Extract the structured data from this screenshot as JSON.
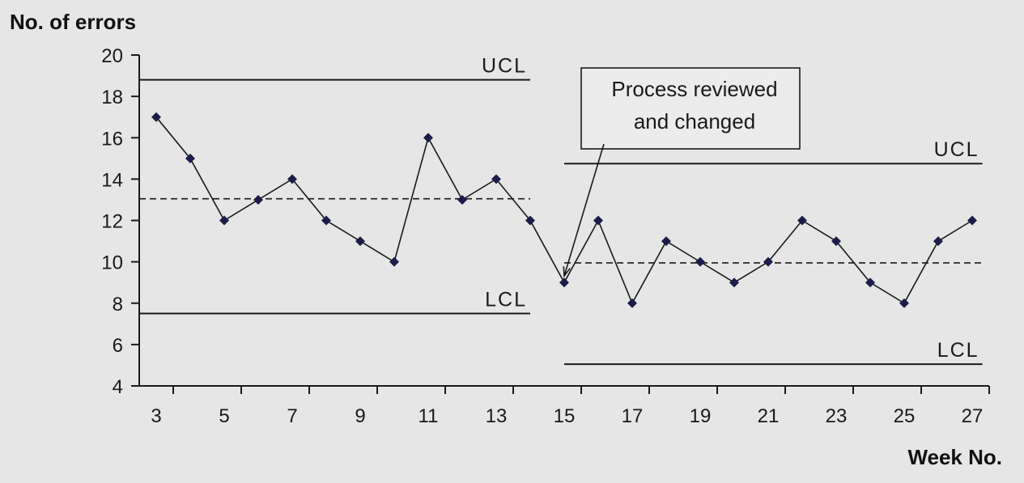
{
  "chart_data": {
    "type": "line",
    "ylabel": "No. of errors",
    "xlabel": "Week No.",
    "ylim": [
      4,
      20
    ],
    "yticks": [
      4,
      6,
      8,
      10,
      12,
      14,
      16,
      18,
      20
    ],
    "xlim": [
      2.5,
      27.5
    ],
    "xticks": [
      3,
      5,
      7,
      9,
      11,
      13,
      15,
      17,
      19,
      21,
      23,
      25,
      27
    ],
    "series": [
      {
        "name": "No. of errors",
        "x": [
          3,
          4,
          5,
          6,
          7,
          8,
          9,
          10,
          11,
          12,
          13,
          14,
          15,
          16,
          17,
          18,
          19,
          20,
          21,
          22,
          23,
          24,
          25,
          26,
          27
        ],
        "values": [
          17,
          15,
          12,
          13,
          14,
          12,
          11,
          10,
          16,
          13,
          14,
          12,
          9,
          12,
          8,
          11,
          10,
          9,
          10,
          12,
          11,
          9,
          8,
          11,
          12
        ]
      }
    ],
    "control_lines": [
      {
        "label": "UCL",
        "style": "solid",
        "value": 18.8,
        "x_range": [
          2.5,
          14
        ]
      },
      {
        "label": "",
        "style": "dashed",
        "value": 13.05,
        "x_range": [
          2.5,
          14
        ]
      },
      {
        "label": "LCL",
        "style": "solid",
        "value": 7.5,
        "x_range": [
          2.5,
          14
        ]
      },
      {
        "label": "UCL",
        "style": "solid",
        "value": 14.75,
        "x_range": [
          15,
          27.3
        ]
      },
      {
        "label": "",
        "style": "dashed",
        "value": 9.95,
        "x_range": [
          15,
          27.3
        ]
      },
      {
        "label": "LCL",
        "style": "solid",
        "value": 5.05,
        "x_range": [
          15,
          27.3
        ]
      }
    ],
    "annotation": {
      "lines": [
        "Process reviewed",
        "and changed"
      ],
      "points_to_x": 15,
      "points_to_y": 9
    },
    "colors": {
      "background": "#e6e6e6",
      "line": "#1a1a1a",
      "marker": "#1c1c4a"
    }
  }
}
